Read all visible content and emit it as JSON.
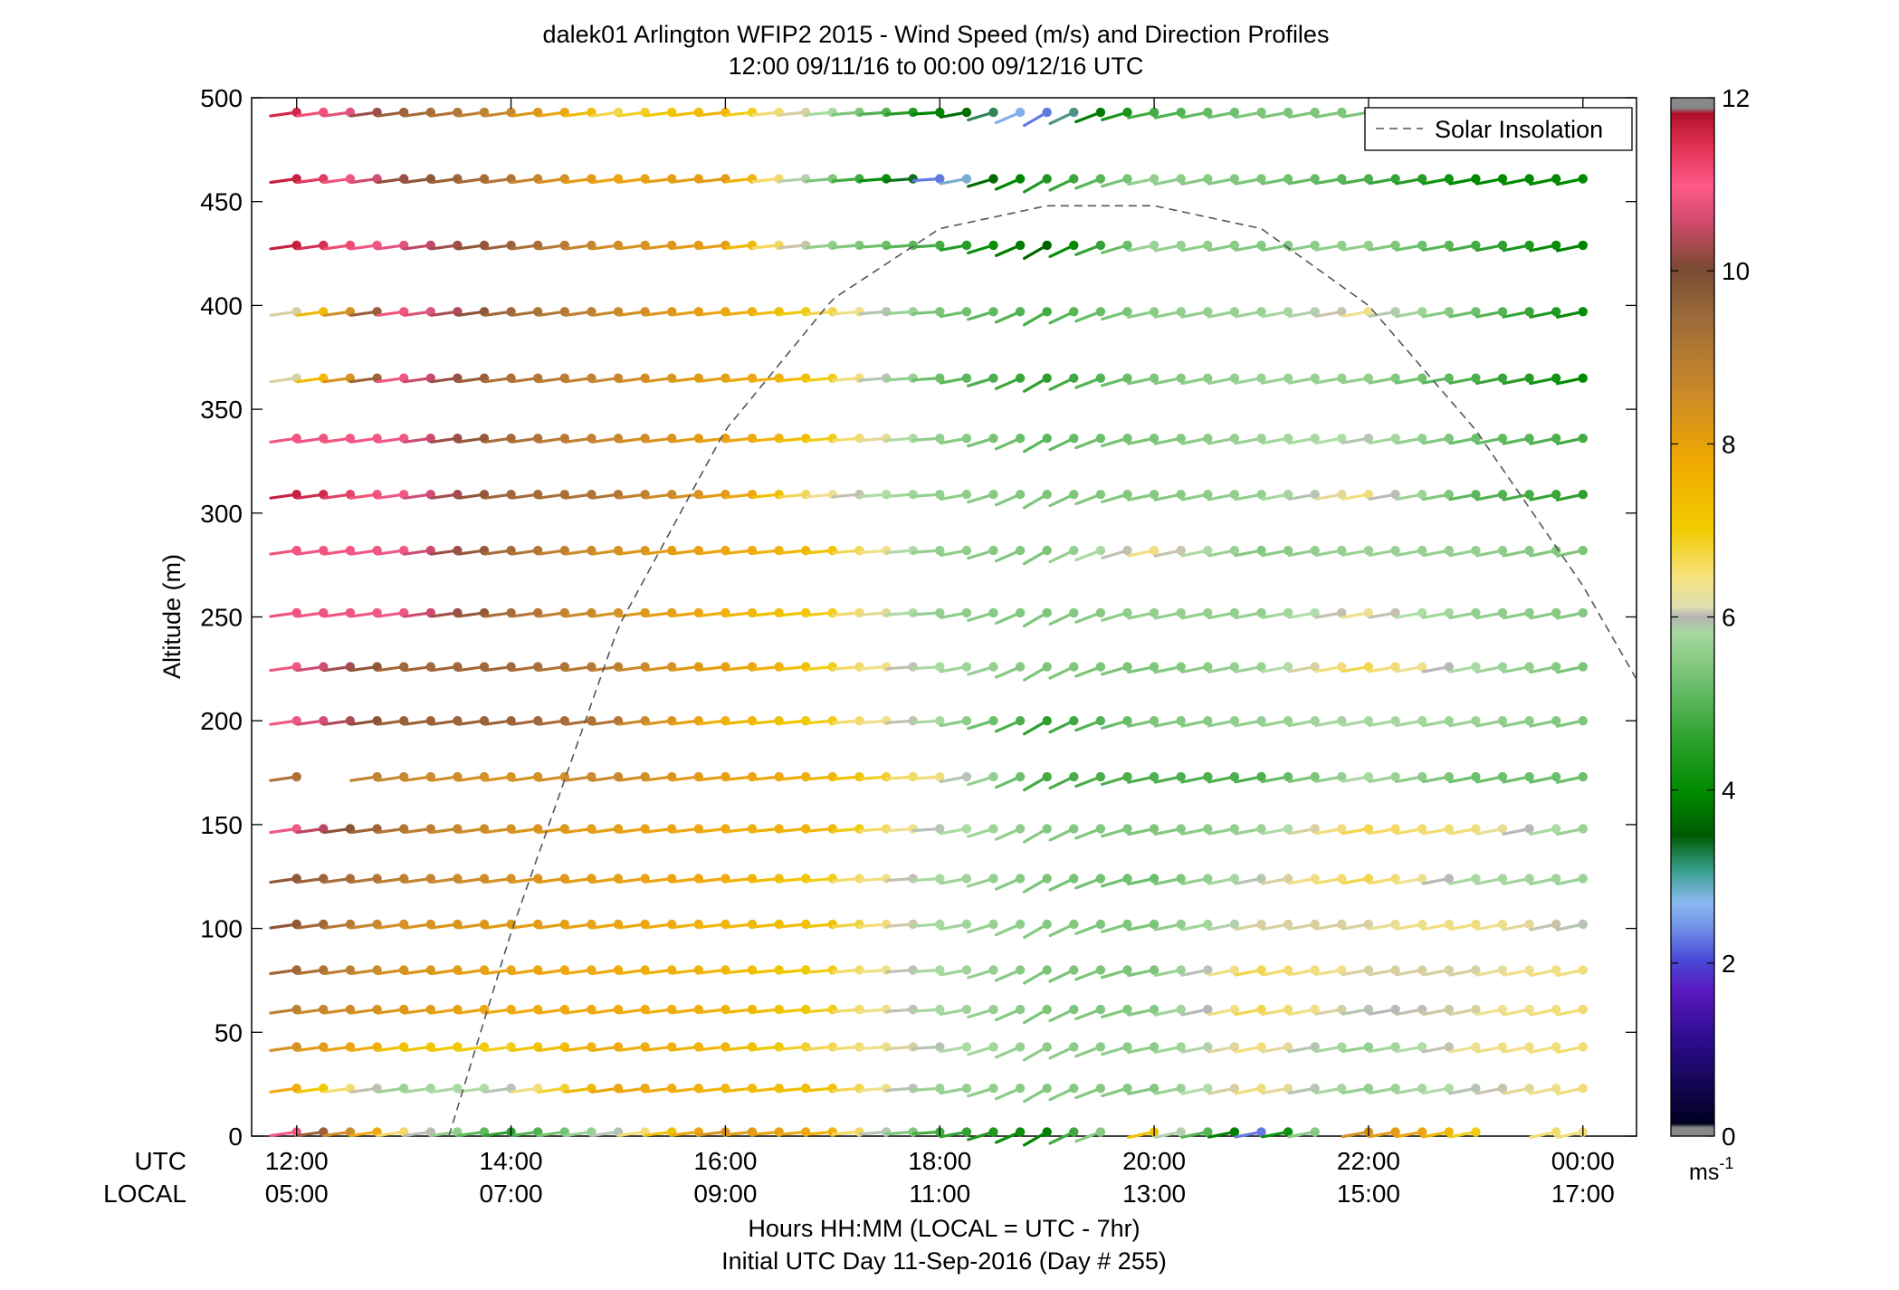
{
  "chart_data": {
    "type": "scatter",
    "title": "dalek01 Arlington WFIP2 2015 - Wind Speed (m/s) and Direction Profiles",
    "subtitle": "12:00 09/11/16 to 00:00 09/12/16  UTC",
    "ylabel": "Altitude (m)",
    "ylim": [
      0,
      500
    ],
    "yticks": [
      "0",
      "50",
      "100",
      "150",
      "200",
      "250",
      "300",
      "350",
      "400",
      "450",
      "500"
    ],
    "xlim_hours_utc": [
      11.58,
      24.5
    ],
    "x_utc_row_label": "UTC",
    "x_local_row_label": "LOCAL",
    "xticks": [
      {
        "hour": 12,
        "utc": "12:00",
        "local": "05:00"
      },
      {
        "hour": 14,
        "utc": "14:00",
        "local": "07:00"
      },
      {
        "hour": 16,
        "utc": "16:00",
        "local": "09:00"
      },
      {
        "hour": 18,
        "utc": "18:00",
        "local": "11:00"
      },
      {
        "hour": 20,
        "utc": "20:00",
        "local": "13:00"
      },
      {
        "hour": 22,
        "utc": "22:00",
        "local": "15:00"
      },
      {
        "hour": 24,
        "utc": "00:00",
        "local": "17:00"
      }
    ],
    "xlabel": "Hours HH:MM  (LOCAL = UTC - 7hr)",
    "xlabel2": "Initial UTC Day 11-Sep-2016 (Day # 255)",
    "legend": {
      "label": "Solar Insolation",
      "position": "top-right"
    },
    "colorbar": {
      "unit": "ms",
      "unit_sup": "-1",
      "range": [
        0,
        12
      ],
      "ticks": [
        "0",
        "2",
        "4",
        "6",
        "8",
        "10",
        "12"
      ]
    },
    "solar_insolation": {
      "x": [
        13.42,
        14.0,
        15.0,
        16.0,
        17.0,
        18.0,
        19.0,
        20.0,
        21.0,
        22.0,
        23.0,
        24.0,
        24.5
      ],
      "y": [
        0,
        98,
        245,
        340,
        403,
        437,
        448,
        448,
        437,
        400,
        340,
        265,
        220
      ]
    },
    "altitudes": [
      2,
      23,
      43,
      61,
      80,
      102,
      124,
      148,
      173,
      200,
      226,
      252,
      282,
      309,
      336,
      365,
      397,
      429,
      461,
      493
    ],
    "times_start": 12.0,
    "times_step": 0.25,
    "speed_anchors": {
      "x": [
        12.0,
        13.0,
        14.0,
        15.0,
        16.0,
        17.0,
        18.0,
        19.0,
        20.0,
        21.0,
        22.0,
        23.0,
        24.0
      ],
      "rows": [
        [
          10.6,
          6.7,
          4.2,
          6.0,
          8.4,
          7.5,
          4.5,
          3.5,
          7.2,
          2.2,
          8.5,
          7.0,
          6.5
        ],
        [
          7.6,
          5.6,
          6.0,
          7.8,
          7.4,
          7.2,
          5.6,
          5.3,
          5.3,
          6.5,
          5.5,
          6.0,
          6.5
        ],
        [
          8.5,
          7.2,
          7.0,
          7.6,
          7.4,
          6.8,
          6.0,
          5.4,
          5.4,
          6.5,
          5.5,
          6.3,
          6.6
        ],
        [
          9.0,
          8.3,
          7.6,
          7.6,
          7.5,
          7.0,
          5.8,
          5.2,
          5.3,
          6.8,
          6.0,
          6.2,
          6.6
        ],
        [
          9.5,
          8.5,
          7.8,
          7.6,
          7.4,
          7.0,
          5.8,
          5.2,
          5.2,
          6.8,
          6.2,
          6.2,
          6.5
        ],
        [
          9.8,
          8.5,
          8.2,
          7.8,
          7.4,
          7.2,
          5.8,
          5.3,
          5.2,
          6.2,
          6.2,
          6.5,
          6.0
        ],
        [
          9.8,
          9.0,
          8.5,
          8.0,
          7.6,
          7.0,
          5.8,
          5.2,
          5.0,
          6.0,
          6.8,
          5.8,
          5.6
        ],
        [
          10.6,
          9.2,
          8.5,
          8.0,
          7.6,
          7.4,
          6.0,
          5.3,
          5.2,
          5.6,
          6.8,
          6.5,
          5.6
        ],
        [
          9.3,
          8.8,
          8.4,
          8.8,
          8.0,
          7.4,
          6.5,
          4.5,
          4.6,
          4.6,
          5.8,
          5.0,
          5.0
        ],
        [
          10.7,
          9.6,
          9.6,
          9.2,
          7.5,
          7.0,
          5.8,
          4.2,
          5.2,
          5.5,
          5.8,
          5.6,
          5.2
        ],
        [
          10.7,
          9.5,
          9.5,
          9.0,
          8.0,
          7.0,
          5.8,
          5.2,
          5.2,
          5.6,
          6.8,
          5.8,
          5.2
        ],
        [
          10.8,
          10.7,
          9.4,
          8.5,
          7.5,
          7.0,
          5.5,
          5.2,
          5.5,
          5.5,
          6.3,
          5.5,
          5.3
        ],
        [
          10.8,
          10.7,
          9.4,
          8.5,
          7.8,
          7.2,
          5.5,
          5.2,
          6.4,
          5.3,
          5.6,
          5.5,
          5.2
        ],
        [
          11.6,
          10.7,
          9.5,
          9.2,
          8.2,
          6.3,
          5.5,
          5.2,
          5.3,
          5.5,
          6.5,
          4.8,
          4.2
        ],
        [
          10.8,
          10.7,
          9.4,
          8.8,
          8.0,
          7.0,
          5.5,
          4.8,
          5.2,
          5.6,
          6.0,
          5.0,
          4.5
        ],
        [
          6.2,
          10.7,
          9.3,
          8.8,
          8.0,
          7.0,
          5.0,
          4.2,
          5.2,
          5.6,
          5.5,
          4.6,
          3.6
        ],
        [
          6.2,
          10.8,
          9.5,
          8.8,
          7.8,
          6.8,
          5.2,
          4.5,
          5.4,
          5.6,
          6.3,
          5.0,
          3.7
        ],
        [
          11.6,
          10.5,
          9.6,
          8.6,
          8.0,
          5.5,
          4.5,
          3.0,
          5.6,
          5.3,
          5.5,
          4.5,
          3.5
        ],
        [
          11.6,
          10.0,
          9.2,
          7.8,
          8.2,
          5.2,
          2.2,
          4.0,
          5.5,
          5.2,
          4.6,
          3.6,
          3.6
        ],
        [
          11.4,
          9.6,
          8.8,
          6.8,
          7.4,
          5.8,
          3.5,
          2.2,
          4.5,
          5.2,
          5.2,
          4.5,
          4.3
        ]
      ]
    },
    "gaps": [
      {
        "row": 0,
        "hours": [
          19.75,
          21.75,
          23.25,
          23.5
        ]
      },
      {
        "row": 8,
        "hours": [
          12.25,
          12.5
        ]
      }
    ],
    "barb_angle_anchors": {
      "x": [
        12.0,
        15.0,
        18.0,
        19.0,
        20.0,
        22.0,
        24.0
      ],
      "deg": [
        8,
        8,
        4,
        30,
        12,
        10,
        12
      ]
    }
  }
}
